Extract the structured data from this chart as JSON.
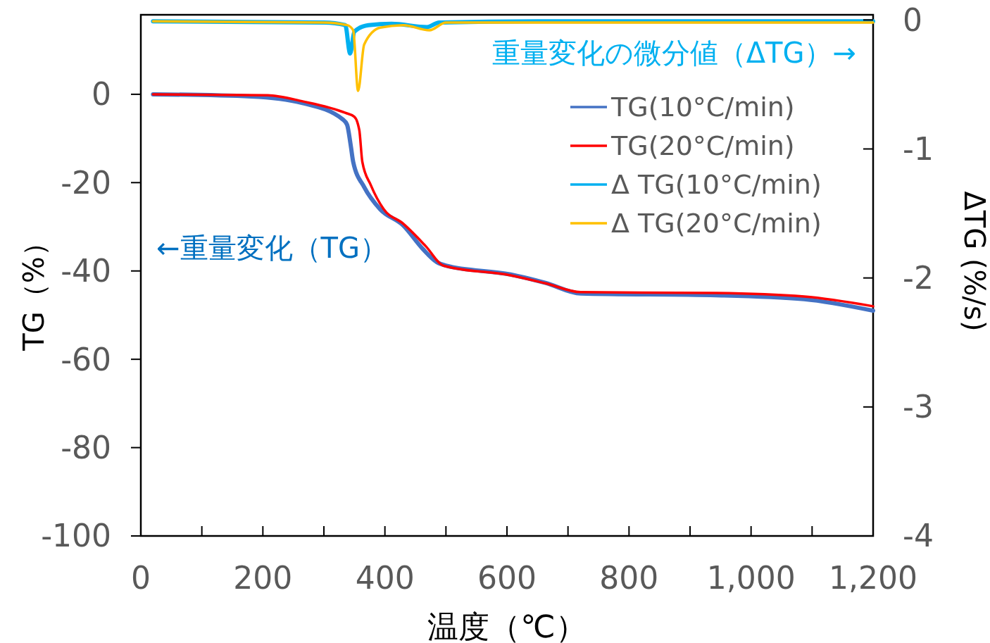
{
  "chart_data": {
    "type": "line",
    "xlabel": "温度（℃）",
    "ylabel": "TG（%）",
    "y2label": "ΔTG (%/s)",
    "xlim": [
      0,
      1200
    ],
    "ylim": [
      -100,
      18
    ],
    "y2lim": [
      -4,
      0.04
    ],
    "xticks": [
      0,
      {
        "value": 100,
        "label": null
      },
      200,
      {
        "value": 300,
        "label": null
      },
      400,
      {
        "value": 500,
        "label": null
      },
      600,
      {
        "value": 700,
        "label": null
      },
      800,
      {
        "value": 900,
        "label": null
      },
      {
        "value": 1000,
        "label": "1,000"
      },
      {
        "value": 1100,
        "label": null
      },
      {
        "value": 1200,
        "label": "1,200"
      }
    ],
    "yticks": [
      0,
      -20,
      -40,
      -60,
      -80,
      -100
    ],
    "y2ticks": [
      0,
      -1,
      -2,
      -3,
      -4
    ],
    "legend": "top right",
    "grid": false,
    "annotations": [
      "←重量変化（TG）",
      "重量変化の微分値（ΔTG）→"
    ],
    "series": [
      {
        "name": "TG(10°C/min)",
        "color": "#4472c4",
        "x": [
          20,
          181,
          265,
          331,
          338,
          344,
          348,
          366,
          392,
          430,
          462,
          485,
          500,
          606,
          663,
          721,
          943,
          1087,
          1200
        ],
        "values": [
          0,
          -0.5,
          -2,
          -5.7,
          -6.9,
          -11.6,
          -15.3,
          -21,
          -26,
          -29.7,
          -35,
          -38,
          -38.8,
          -40.8,
          -42.7,
          -45.1,
          -45.5,
          -46.4,
          -49
        ]
      },
      {
        "name": "TG(20°C/min)",
        "color": "#ff0000",
        "x": [
          20,
          208,
          265,
          335,
          350,
          358,
          363,
          377,
          398,
          430,
          467,
          496,
          606,
          663,
          721,
          943,
          1087,
          1200
        ],
        "values": [
          0,
          -0.2,
          -1.6,
          -4.2,
          -5.1,
          -8.1,
          -15.3,
          -20.6,
          -26,
          -29.3,
          -34.4,
          -38.8,
          -41,
          -42.8,
          -44.8,
          -45,
          -45.8,
          -48
        ]
      },
      {
        "name": "Δ TG(10°C/min)",
        "color": "#00b0f0",
        "axis": "y2",
        "x": [
          20,
          300,
          335,
          343,
          350,
          373,
          411,
          469,
          489,
          700,
          1200
        ],
        "values": [
          -0.01,
          -0.02,
          -0.04,
          -0.26,
          -0.09,
          -0.04,
          -0.03,
          -0.055,
          -0.02,
          -0.01,
          -0.01
        ]
      },
      {
        "name": "Δ TG(20°C/min)",
        "color": "#ffc000",
        "axis": "y2",
        "x": [
          20,
          300,
          338,
          348,
          356,
          366,
          392,
          430,
          473,
          500,
          720,
          1200
        ],
        "values": [
          -0.01,
          -0.02,
          -0.04,
          -0.08,
          -0.55,
          -0.19,
          -0.06,
          -0.04,
          -0.08,
          -0.02,
          -0.02,
          -0.02
        ]
      }
    ]
  }
}
